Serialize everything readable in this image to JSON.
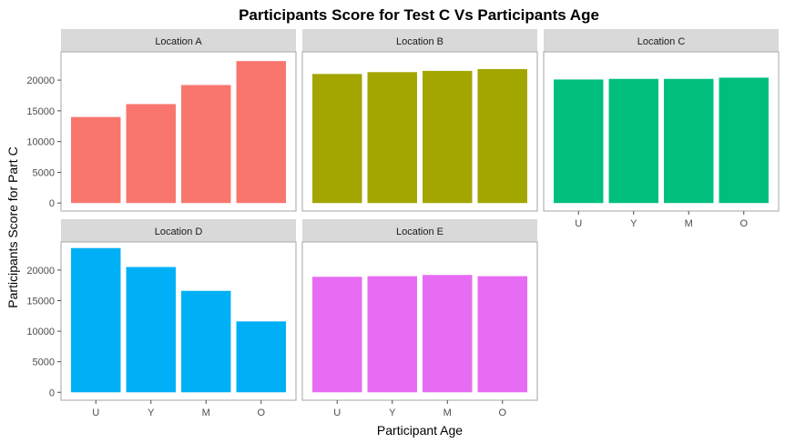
{
  "chart_data": {
    "type": "bar",
    "title": "Participants Score for Test C Vs Participants Age",
    "xlabel": "Participant Age",
    "ylabel": "Participants Score for Part C",
    "categories": [
      "U",
      "Y",
      "M",
      "O"
    ],
    "ylim": [
      0,
      25000
    ],
    "yticks": [
      0,
      5000,
      10000,
      15000,
      20000
    ],
    "ytick_labels": [
      "0",
      "5000",
      "10000",
      "15000",
      "20000"
    ],
    "grid": false,
    "legend": "none",
    "facets": [
      {
        "label": "Location A",
        "color": "#F8766D",
        "values": [
          14000,
          16100,
          19200,
          23100
        ]
      },
      {
        "label": "Location B",
        "color": "#A3A500",
        "values": [
          21000,
          21300,
          21500,
          21800
        ]
      },
      {
        "label": "Location C",
        "color": "#00BF7D",
        "values": [
          20100,
          20200,
          20200,
          20400
        ]
      },
      {
        "label": "Location D",
        "color": "#00B0F6",
        "values": [
          23600,
          20500,
          16600,
          11600
        ]
      },
      {
        "label": "Location E",
        "color": "#E76BF3",
        "values": [
          18900,
          19000,
          19200,
          19000
        ]
      }
    ]
  }
}
